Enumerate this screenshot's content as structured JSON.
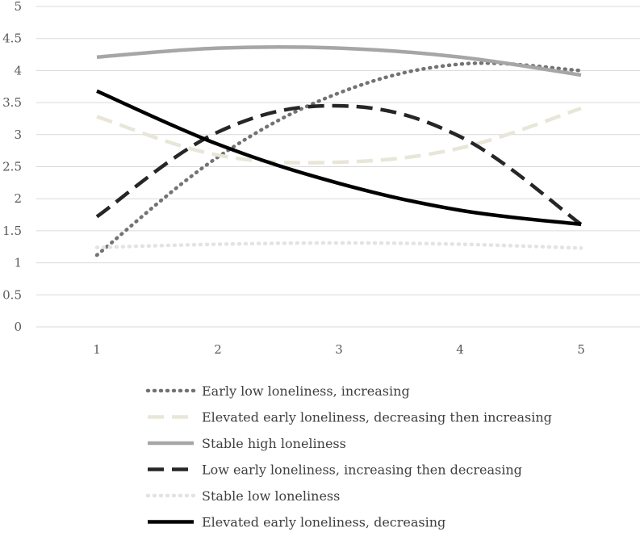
{
  "chart_data": {
    "type": "line",
    "title": "",
    "xlabel": "",
    "ylabel": "",
    "x": [
      1,
      2,
      3,
      4,
      5
    ],
    "x_tick_labels": [
      "1",
      "2",
      "3",
      "4",
      "5"
    ],
    "ylim": [
      0,
      5
    ],
    "y_ticks": [
      0,
      0.5,
      1,
      1.5,
      2,
      2.5,
      3,
      3.5,
      4,
      4.5,
      5
    ],
    "y_tick_labels": [
      "0",
      "0.5",
      "1",
      "1.5",
      "2",
      "2.5",
      "3",
      "3.5",
      "4",
      "4.5",
      "5"
    ],
    "grid": true,
    "legend_position": "bottom",
    "series": [
      {
        "name": "Early low loneliness, increasing",
        "values": [
          1.12,
          2.65,
          3.65,
          4.1,
          4.0
        ],
        "color": "#737373",
        "style": "dotted"
      },
      {
        "name": "Elevated early loneliness, decreasing then increasing",
        "values": [
          3.28,
          2.68,
          2.57,
          2.79,
          3.41
        ],
        "color": "#e8e6d8",
        "style": "dashed"
      },
      {
        "name": "Stable high loneliness",
        "values": [
          4.21,
          4.35,
          4.35,
          4.21,
          3.93
        ],
        "color": "#a6a6a6",
        "style": "solid"
      },
      {
        "name": "Low early loneliness, increasing then decreasing",
        "values": [
          1.72,
          3.04,
          3.45,
          2.97,
          1.6
        ],
        "color": "#262626",
        "style": "dashed"
      },
      {
        "name": "Stable low loneliness",
        "values": [
          1.24,
          1.29,
          1.31,
          1.29,
          1.23
        ],
        "color": "#e3e3e3",
        "style": "dotted"
      },
      {
        "name": "Elevated early loneliness, decreasing",
        "values": [
          3.68,
          2.85,
          2.24,
          1.82,
          1.6
        ],
        "color": "#000000",
        "style": "solid"
      }
    ]
  }
}
